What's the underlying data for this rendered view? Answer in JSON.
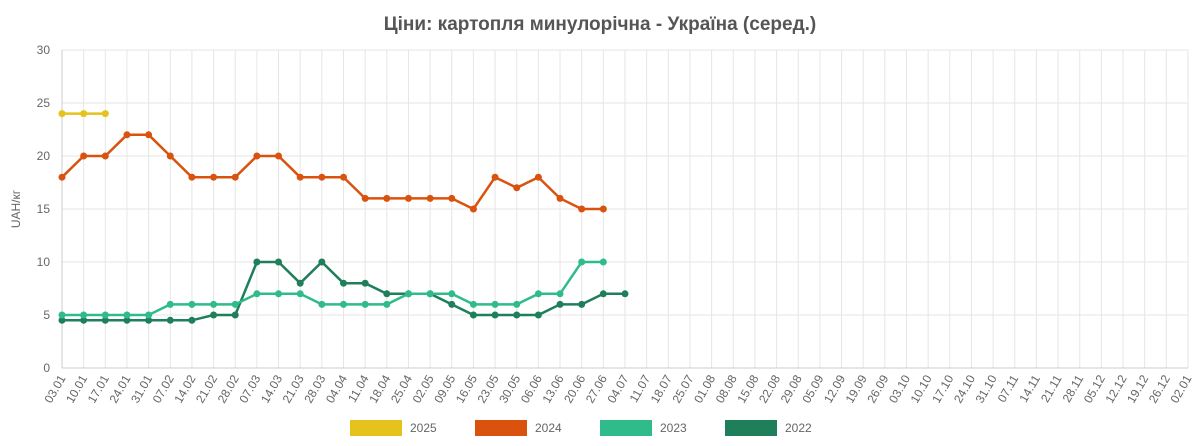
{
  "chart_data": {
    "type": "line",
    "title": "Ціни: картопля минулорічна - Україна (серед.)",
    "y_label": "UAH/кг",
    "categories": [
      "03.01",
      "10.01",
      "17.01",
      "24.01",
      "31.01",
      "07.02",
      "14.02",
      "21.02",
      "28.02",
      "07.03",
      "14.03",
      "21.03",
      "28.03",
      "04.04",
      "11.04",
      "18.04",
      "25.04",
      "02.05",
      "09.05",
      "16.05",
      "23.05",
      "30.05",
      "06.06",
      "13.06",
      "20.06",
      "27.06",
      "04.07",
      "11.07",
      "18.07",
      "25.07",
      "01.08",
      "08.08",
      "15.08",
      "22.08",
      "29.08",
      "05.09",
      "12.09",
      "19.09",
      "26.09",
      "03.10",
      "10.10",
      "17.10",
      "24.10",
      "31.10",
      "07.11",
      "14.11",
      "21.11",
      "28.11",
      "05.12",
      "12.12",
      "19.12",
      "26.12",
      "02.01"
    ],
    "series": [
      {
        "name": "2025",
        "color": "#e5c31c",
        "values": [
          24,
          24,
          24,
          null,
          null,
          null,
          null,
          null,
          null,
          null,
          null,
          null,
          null,
          null,
          null,
          null,
          null,
          null,
          null,
          null,
          null,
          null,
          null,
          null,
          null,
          null,
          null,
          null,
          null,
          null,
          null,
          null,
          null,
          null,
          null,
          null,
          null,
          null,
          null,
          null,
          null,
          null,
          null,
          null,
          null,
          null,
          null,
          null,
          null,
          null,
          null,
          null,
          null
        ]
      },
      {
        "name": "2024",
        "color": "#d9530f",
        "values": [
          18,
          20,
          20,
          22,
          22,
          20,
          18,
          18,
          18,
          20,
          20,
          18,
          18,
          18,
          16,
          16,
          16,
          16,
          16,
          15,
          18,
          17,
          18,
          16,
          15,
          15,
          null,
          null,
          null,
          null,
          null,
          null,
          null,
          null,
          null,
          null,
          null,
          null,
          null,
          null,
          null,
          null,
          null,
          null,
          null,
          null,
          null,
          null,
          null,
          null,
          null,
          null,
          null
        ]
      },
      {
        "name": "2023",
        "color": "#2fbb8a",
        "values": [
          5,
          5,
          5,
          5,
          5,
          6,
          6,
          6,
          6,
          7,
          7,
          7,
          6,
          6,
          6,
          6,
          7,
          7,
          7,
          6,
          6,
          6,
          7,
          7,
          10,
          10,
          null,
          null,
          null,
          null,
          null,
          null,
          null,
          null,
          null,
          null,
          null,
          null,
          null,
          null,
          null,
          null,
          null,
          null,
          null,
          null,
          null,
          null,
          null,
          null,
          null,
          null,
          null
        ]
      },
      {
        "name": "2022",
        "color": "#1e7f5a",
        "values": [
          4.5,
          4.5,
          4.5,
          4.5,
          4.5,
          4.5,
          4.5,
          5,
          5,
          10,
          10,
          8,
          10,
          8,
          8,
          7,
          7,
          7,
          6,
          5,
          5,
          5,
          5,
          6,
          6,
          7,
          7,
          null,
          null,
          null,
          null,
          null,
          null,
          null,
          null,
          null,
          null,
          null,
          null,
          null,
          null,
          null,
          null,
          null,
          null,
          null,
          null,
          null,
          null,
          null,
          null,
          null,
          null
        ]
      }
    ],
    "ylim": [
      0,
      30
    ],
    "yticks": [
      0,
      5,
      10,
      15,
      20,
      25,
      30
    ],
    "grid": true,
    "legend": "bottom"
  }
}
